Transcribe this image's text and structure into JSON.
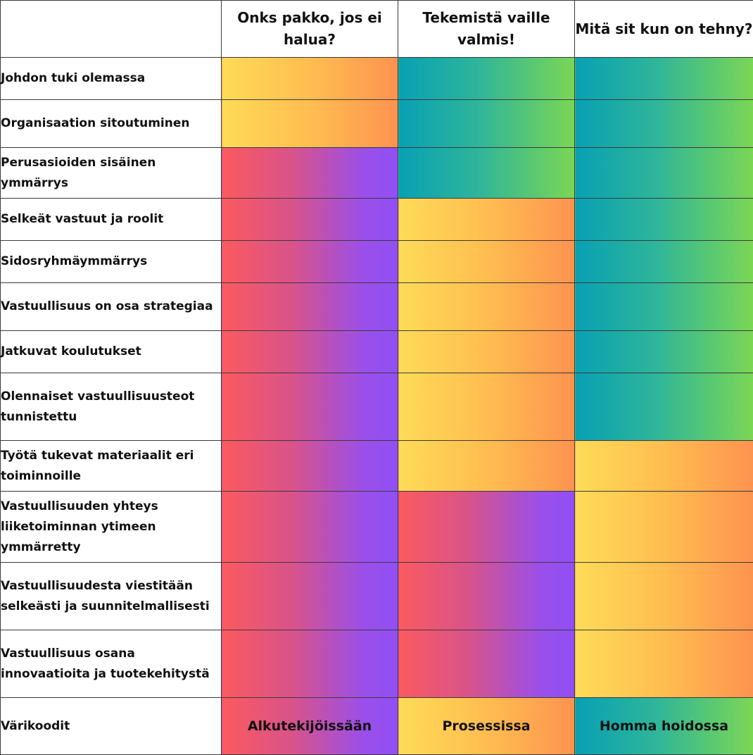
{
  "header": {
    "columns": [
      "Onks pakko, jos ei halua?",
      "Tekemistä vaille valmis!",
      "Mitä sit kun on tehny?"
    ]
  },
  "rows": [
    {
      "label": "Johdon tuki olemassa",
      "levels": [
        "yellow",
        "green",
        "green"
      ]
    },
    {
      "label": "Organisaation sitoutuminen",
      "levels": [
        "yellow",
        "green",
        "green"
      ]
    },
    {
      "label": "Perusasioiden sisäinen ymmärrys",
      "levels": [
        "red",
        "green",
        "green"
      ]
    },
    {
      "label": "Selkeät vastuut ja roolit",
      "levels": [
        "red",
        "yellow",
        "green"
      ]
    },
    {
      "label": "Sidosryhmäymmärrys",
      "levels": [
        "red",
        "yellow",
        "green"
      ]
    },
    {
      "label": "Vastuullisuus on osa strategiaa",
      "levels": [
        "red",
        "yellow",
        "green"
      ]
    },
    {
      "label": "Jatkuvat koulutukset",
      "levels": [
        "red",
        "yellow",
        "green"
      ]
    },
    {
      "label": "Olennaiset vastuullisuusteot tunnistettu",
      "levels": [
        "red",
        "yellow",
        "green"
      ]
    },
    {
      "label": "Työtä tukevat materiaalit eri toiminnoille",
      "levels": [
        "red",
        "yellow",
        "yellow"
      ]
    },
    {
      "label": "Vastuullisuuden yhteys liiketoiminnan ytimeen ymmärretty",
      "levels": [
        "red",
        "red",
        "yellow"
      ]
    },
    {
      "label": "Vastuullisuudesta viestitään selkeästi ja suunnitelmallisesti",
      "levels": [
        "red",
        "red",
        "yellow"
      ]
    },
    {
      "label": "Vastuullisuus osana innovaatioita ja tuotekehitystä",
      "levels": [
        "red",
        "red",
        "yellow"
      ]
    }
  ],
  "legend": {
    "label": "Värikoodit",
    "items": [
      {
        "key": "red",
        "text": "Alkutekijöissään"
      },
      {
        "key": "yellow",
        "text": "Prosessissa"
      },
      {
        "key": "green",
        "text": "Homma  hoidossa"
      }
    ]
  },
  "colors": {
    "red": [
      "#fb5a5e",
      "#914ff5"
    ],
    "yellow": [
      "#fedb58",
      "#fe9350"
    ],
    "green": [
      "#08a0b4",
      "#7bd654"
    ],
    "border": "#3a3a3a"
  }
}
